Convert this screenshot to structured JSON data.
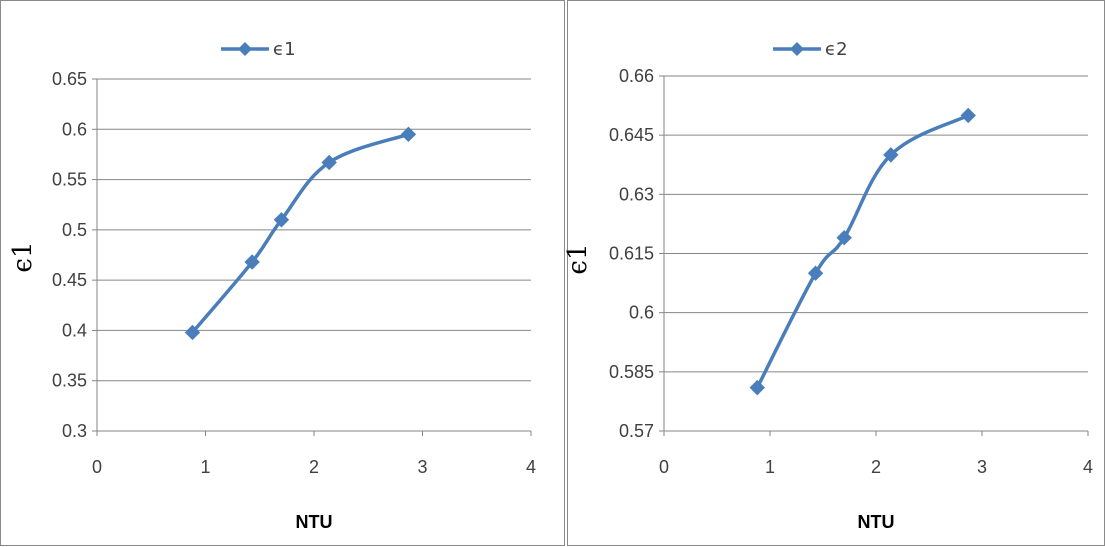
{
  "colors": {
    "series": "#4a7ebb",
    "grid": "#868686",
    "axis": "#868686"
  },
  "chart_data": [
    {
      "type": "line",
      "title": "",
      "xlabel": "NTU",
      "ylabel": "ϵ1",
      "xlim": [
        0,
        4
      ],
      "ylim": [
        0.3,
        0.65
      ],
      "xticks": [
        "0",
        "1",
        "2",
        "3",
        "4"
      ],
      "yticks": [
        "0.3",
        "0.35",
        "0.4",
        "0.45",
        "0.5",
        "0.55",
        "0.6",
        "0.65"
      ],
      "grid": true,
      "legend_position": "top-center",
      "series": [
        {
          "name": "ϵ1",
          "x": [
            0.88,
            1.43,
            1.7,
            2.14,
            2.87
          ],
          "y": [
            0.398,
            0.468,
            0.51,
            0.567,
            0.595
          ]
        }
      ]
    },
    {
      "type": "line",
      "title": "",
      "xlabel": "NTU",
      "ylabel": "ϵ1",
      "xlim": [
        0,
        4
      ],
      "ylim": [
        0.57,
        0.66
      ],
      "xticks": [
        "0",
        "1",
        "2",
        "3",
        "4"
      ],
      "yticks": [
        "0.57",
        "0.585",
        "0.6",
        "0.615",
        "0.63",
        "0.645",
        "0.66"
      ],
      "grid": true,
      "legend_position": "top-center",
      "series": [
        {
          "name": "ϵ2",
          "x": [
            0.88,
            1.43,
            1.7,
            2.14,
            2.87
          ],
          "y": [
            0.581,
            0.61,
            0.619,
            0.64,
            0.65
          ]
        }
      ]
    }
  ]
}
